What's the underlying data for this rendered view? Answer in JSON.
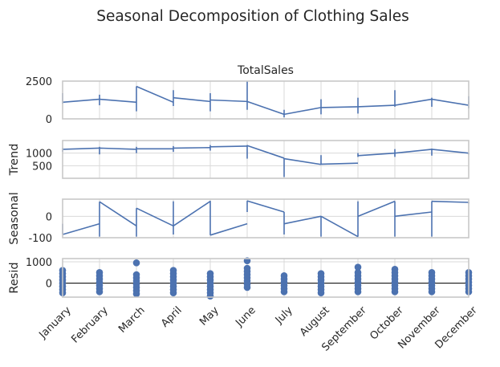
{
  "chart_data": {
    "type": "line",
    "title": "Seasonal Decomposition of Clothing Sales",
    "months": [
      "January",
      "February",
      "March",
      "April",
      "May",
      "June",
      "July",
      "August",
      "September",
      "October",
      "November",
      "December"
    ],
    "colors": {
      "line": "#4c72b0",
      "resid_marker": "#4c72b0",
      "zero_line": "#000000",
      "grid": "#d9d9d9",
      "frame": "#c8c8c8"
    },
    "grid": true,
    "panels": [
      {
        "key": "observed",
        "title": "TotalSales",
        "ylabel": "",
        "ylim": [
          0,
          2500
        ],
        "yticks": [
          0,
          2500
        ],
        "segments": [
          {
            "month": 0,
            "start": 1100,
            "end": 1300,
            "low": 1000,
            "high": 1700
          },
          {
            "month": 1,
            "start": 1300,
            "end": 1100,
            "low": 900,
            "high": 1600
          },
          {
            "month": 2,
            "start": 2150,
            "end": 1100,
            "low": 500,
            "high": 2150
          },
          {
            "month": 3,
            "start": 1400,
            "end": 1150,
            "low": 850,
            "high": 1900
          },
          {
            "month": 4,
            "start": 1250,
            "end": 1150,
            "low": 500,
            "high": 1700
          },
          {
            "month": 5,
            "start": 1150,
            "end": 300,
            "low": 600,
            "high": 2500
          },
          {
            "month": 6,
            "start": 300,
            "end": 750,
            "low": 100,
            "high": 600
          },
          {
            "month": 7,
            "start": 750,
            "end": 800,
            "low": 300,
            "high": 1300
          },
          {
            "month": 8,
            "start": 800,
            "end": 900,
            "low": 350,
            "high": 1400
          },
          {
            "month": 9,
            "start": 900,
            "end": 1300,
            "low": 800,
            "high": 1900
          },
          {
            "month": 10,
            "start": 1300,
            "end": 900,
            "low": 800,
            "high": 1400
          },
          {
            "month": 11,
            "start": 1000,
            "end": 1150,
            "low": 700,
            "high": 1500
          }
        ]
      },
      {
        "key": "trend",
        "title": "",
        "ylabel": "Trend",
        "ylim": [
          0,
          1500
        ],
        "yticks": [
          500,
          1000
        ],
        "segments": [
          {
            "month": 0,
            "start": 1150,
            "end": 1200,
            "low": 1050,
            "high": 1200
          },
          {
            "month": 1,
            "start": 1200,
            "end": 1150,
            "low": 950,
            "high": 1250
          },
          {
            "month": 2,
            "start": 1170,
            "end": 1170,
            "low": 1000,
            "high": 1250
          },
          {
            "month": 3,
            "start": 1200,
            "end": 1220,
            "low": 1050,
            "high": 1280
          },
          {
            "month": 4,
            "start": 1250,
            "end": 1280,
            "low": 1100,
            "high": 1320
          },
          {
            "month": 5,
            "start": 1300,
            "end": 800,
            "low": 780,
            "high": 1320
          },
          {
            "month": 6,
            "start": 780,
            "end": 550,
            "low": 50,
            "high": 800
          },
          {
            "month": 7,
            "start": 560,
            "end": 600,
            "low": 540,
            "high": 920
          },
          {
            "month": 8,
            "start": 900,
            "end": 1000,
            "low": 850,
            "high": 1000
          },
          {
            "month": 9,
            "start": 1000,
            "end": 1150,
            "low": 850,
            "high": 1160
          },
          {
            "month": 10,
            "start": 1150,
            "end": 1000,
            "low": 900,
            "high": 1180
          },
          {
            "month": 11,
            "start": 1000,
            "end": 970,
            "low": 950,
            "high": 1000
          }
        ]
      },
      {
        "key": "seasonal",
        "title": "",
        "ylabel": "Seasonal",
        "ylim": [
          -100,
          80
        ],
        "yticks": [
          -100,
          0
        ],
        "segments": [
          {
            "month": 0,
            "start": -85,
            "end": -35,
            "low": -85,
            "high": -35
          },
          {
            "month": 1,
            "start": 68,
            "end": -45,
            "low": -95,
            "high": 68
          },
          {
            "month": 2,
            "start": 38,
            "end": -45,
            "low": -95,
            "high": 38
          },
          {
            "month": 3,
            "start": -45,
            "end": 70,
            "low": -85,
            "high": 70
          },
          {
            "month": 4,
            "start": -88,
            "end": -35,
            "low": -88,
            "high": 72
          },
          {
            "month": 5,
            "start": 72,
            "end": 20,
            "low": 20,
            "high": 72
          },
          {
            "month": 6,
            "start": -35,
            "end": 0,
            "low": -85,
            "high": 20
          },
          {
            "month": 7,
            "start": 0,
            "end": -95,
            "low": -95,
            "high": 0
          },
          {
            "month": 8,
            "start": 0,
            "end": 70,
            "low": -95,
            "high": 70
          },
          {
            "month": 9,
            "start": 0,
            "end": 20,
            "low": -95,
            "high": 70
          },
          {
            "month": 10,
            "start": 70,
            "end": 65,
            "low": -95,
            "high": 70
          },
          {
            "month": 11,
            "start": 65,
            "end": 62,
            "low": 60,
            "high": 65
          }
        ]
      },
      {
        "key": "resid",
        "title": "",
        "ylabel": "Resid",
        "ylim": [
          -650,
          1150
        ],
        "yticks": [
          0,
          1000
        ],
        "residuals": [
          [
            600,
            450,
            300,
            150,
            0,
            -150,
            -300,
            -450
          ],
          [
            500,
            350,
            200,
            50,
            -100,
            -250,
            -400
          ],
          [
            950,
            400,
            250,
            100,
            -50,
            -200,
            -350,
            -500
          ],
          [
            600,
            450,
            300,
            150,
            0,
            -150,
            -300,
            -450
          ],
          [
            450,
            300,
            150,
            0,
            -150,
            -300,
            -450,
            -600
          ],
          [
            1050,
            700,
            550,
            400,
            250,
            100,
            -50,
            -200
          ],
          [
            350,
            200,
            50,
            -100,
            -250,
            -400
          ],
          [
            450,
            300,
            150,
            0,
            -150,
            -300,
            -450
          ],
          [
            750,
            500,
            350,
            200,
            50,
            -100,
            -250,
            -400
          ],
          [
            650,
            500,
            350,
            200,
            50,
            -100,
            -250,
            -400
          ],
          [
            500,
            350,
            200,
            50,
            -100,
            -250,
            -400
          ],
          [
            500,
            350,
            200,
            50,
            -100,
            -250,
            -400
          ]
        ]
      }
    ]
  }
}
